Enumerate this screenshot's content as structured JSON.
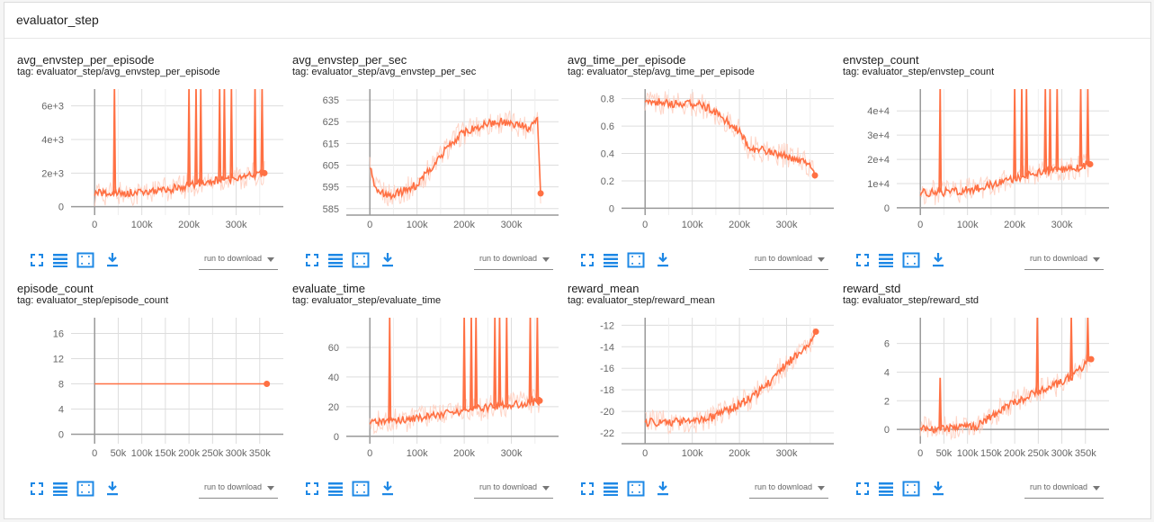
{
  "group": {
    "title": "evaluator_step"
  },
  "colors": {
    "line": "#ff7043",
    "line_light": "#ffccbc",
    "icon": "#1e88e5",
    "grid": "#dddddd",
    "axis": "#999999"
  },
  "toolbar": {
    "icons": [
      "fullscreen-icon",
      "data-table-icon",
      "fit-domain-icon",
      "download-icon"
    ],
    "download_placeholder": "run to download"
  },
  "charts": [
    {
      "title": "avg_envstep_per_episode",
      "tag": "tag: evaluator_step/avg_envstep_per_episode",
      "xlim": [
        -50000,
        400000
      ],
      "ylim": [
        -500,
        7000
      ],
      "xticks": [
        0,
        100000,
        200000,
        300000
      ],
      "xtick_labels": [
        "0",
        "100k",
        "200k",
        "300k"
      ],
      "yticks": [
        0,
        2000,
        4000,
        6000
      ],
      "ytick_labels": [
        "0",
        "2e+3",
        "4e+3",
        "6e+3"
      ],
      "smoothed": [
        [
          0,
          780
        ],
        [
          40000,
          800
        ],
        [
          80000,
          820
        ],
        [
          120000,
          900
        ],
        [
          160000,
          1050
        ],
        [
          200000,
          1250
        ],
        [
          240000,
          1450
        ],
        [
          280000,
          1650
        ],
        [
          320000,
          1800
        ],
        [
          360000,
          2000
        ]
      ],
      "final": [
        360000,
        2000
      ],
      "spikes": [
        [
          42000,
          7000
        ],
        [
          200000,
          7000
        ],
        [
          215000,
          7000
        ],
        [
          225000,
          7000
        ],
        [
          265000,
          7000
        ],
        [
          275000,
          7000
        ],
        [
          290000,
          7000
        ],
        [
          340000,
          7000
        ],
        [
          355000,
          7000
        ]
      ]
    },
    {
      "title": "avg_envstep_per_sec",
      "tag": "tag: evaluator_step/avg_envstep_per_sec",
      "xlim": [
        -50000,
        400000
      ],
      "ylim": [
        582,
        640
      ],
      "xticks": [
        0,
        100000,
        200000,
        300000
      ],
      "xtick_labels": [
        "0",
        "100k",
        "200k",
        "300k"
      ],
      "yticks": [
        585,
        595,
        605,
        615,
        625,
        635
      ],
      "ytick_labels": [
        "585",
        "595",
        "605",
        "615",
        "625",
        "635"
      ],
      "smoothed": [
        [
          0,
          605
        ],
        [
          10000,
          594
        ],
        [
          40000,
          591
        ],
        [
          70000,
          593
        ],
        [
          100000,
          596
        ],
        [
          130000,
          604
        ],
        [
          160000,
          612
        ],
        [
          190000,
          619
        ],
        [
          220000,
          622
        ],
        [
          250000,
          624
        ],
        [
          280000,
          625
        ],
        [
          310000,
          624
        ],
        [
          340000,
          622
        ],
        [
          355000,
          628
        ],
        [
          362000,
          592
        ]
      ],
      "final": [
        362000,
        592
      ],
      "spikes": []
    },
    {
      "title": "avg_time_per_episode",
      "tag": "tag: evaluator_step/avg_time_per_episode",
      "xlim": [
        -50000,
        400000
      ],
      "ylim": [
        -0.05,
        0.87
      ],
      "xticks": [
        0,
        100000,
        200000,
        300000
      ],
      "xtick_labels": [
        "0",
        "100k",
        "200k",
        "300k"
      ],
      "yticks": [
        0,
        0.2,
        0.4,
        0.6,
        0.8
      ],
      "ytick_labels": [
        "0",
        "0.2",
        "0.4",
        "0.6",
        "0.8"
      ],
      "smoothed": [
        [
          0,
          0.79
        ],
        [
          40000,
          0.77
        ],
        [
          80000,
          0.76
        ],
        [
          110000,
          0.76
        ],
        [
          140000,
          0.72
        ],
        [
          170000,
          0.64
        ],
        [
          200000,
          0.56
        ],
        [
          220000,
          0.44
        ],
        [
          260000,
          0.42
        ],
        [
          300000,
          0.38
        ],
        [
          340000,
          0.35
        ],
        [
          360000,
          0.24
        ]
      ],
      "final": [
        360000,
        0.24
      ],
      "spikes": []
    },
    {
      "title": "envstep_count",
      "tag": "tag: evaluator_step/envstep_count",
      "xlim": [
        -50000,
        400000
      ],
      "ylim": [
        -3000,
        49000
      ],
      "xticks": [
        0,
        100000,
        200000,
        300000
      ],
      "xtick_labels": [
        "0",
        "100k",
        "200k",
        "300k"
      ],
      "yticks": [
        0,
        10000,
        20000,
        30000,
        40000
      ],
      "ytick_labels": [
        "0",
        "1e+4",
        "2e+4",
        "3e+4",
        "4e+4"
      ],
      "smoothed": [
        [
          0,
          6200
        ],
        [
          40000,
          6400
        ],
        [
          80000,
          6800
        ],
        [
          120000,
          8000
        ],
        [
          160000,
          10000
        ],
        [
          200000,
          12000
        ],
        [
          240000,
          14000
        ],
        [
          280000,
          15500
        ],
        [
          320000,
          16000
        ],
        [
          360000,
          18000
        ]
      ],
      "final": [
        360000,
        18000
      ],
      "spikes": [
        [
          42000,
          49000
        ],
        [
          200000,
          49000
        ],
        [
          215000,
          49000
        ],
        [
          225000,
          49000
        ],
        [
          265000,
          49000
        ],
        [
          275000,
          49000
        ],
        [
          290000,
          49000
        ],
        [
          340000,
          49000
        ],
        [
          355000,
          49000
        ]
      ]
    },
    {
      "title": "episode_count",
      "tag": "tag: evaluator_step/episode_count",
      "xlim": [
        -50000,
        400000
      ],
      "ylim": [
        -1.5,
        18.5
      ],
      "xticks": [
        0,
        50000,
        100000,
        150000,
        200000,
        250000,
        300000,
        350000
      ],
      "xtick_labels": [
        "0",
        "50k",
        "100k",
        "150k",
        "200k",
        "250k",
        "300k",
        "350k"
      ],
      "yticks": [
        0,
        4,
        8,
        12,
        16
      ],
      "ytick_labels": [
        "0",
        "4",
        "8",
        "12",
        "16"
      ],
      "smoothed": [
        [
          0,
          8
        ],
        [
          365000,
          8
        ]
      ],
      "final": [
        365000,
        8
      ],
      "spikes": []
    },
    {
      "title": "evaluate_time",
      "tag": "tag: evaluator_step/evaluate_time",
      "xlim": [
        -50000,
        400000
      ],
      "ylim": [
        -5,
        80
      ],
      "xticks": [
        0,
        100000,
        200000,
        300000
      ],
      "xtick_labels": [
        "0",
        "100k",
        "200k",
        "300k"
      ],
      "yticks": [
        0,
        20,
        40,
        60
      ],
      "ytick_labels": [
        "0",
        "20",
        "40",
        "60"
      ],
      "smoothed": [
        [
          0,
          10
        ],
        [
          40000,
          10.5
        ],
        [
          80000,
          11
        ],
        [
          120000,
          13
        ],
        [
          160000,
          15
        ],
        [
          200000,
          17.5
        ],
        [
          240000,
          19
        ],
        [
          280000,
          21
        ],
        [
          320000,
          22
        ],
        [
          360000,
          24
        ]
      ],
      "final": [
        360000,
        24
      ],
      "spikes": [
        [
          42000,
          80
        ],
        [
          200000,
          80
        ],
        [
          215000,
          80
        ],
        [
          225000,
          80
        ],
        [
          265000,
          80
        ],
        [
          275000,
          80
        ],
        [
          290000,
          80
        ],
        [
          340000,
          80
        ],
        [
          355000,
          80
        ]
      ]
    },
    {
      "title": "reward_mean",
      "tag": "tag: evaluator_step/reward_mean",
      "xlim": [
        -50000,
        400000
      ],
      "ylim": [
        -23,
        -11.3
      ],
      "xticks": [
        0,
        100000,
        200000,
        300000
      ],
      "xtick_labels": [
        "0",
        "100k",
        "200k",
        "300k"
      ],
      "yticks": [
        -22,
        -20,
        -18,
        -16,
        -14,
        -12
      ],
      "ytick_labels": [
        "-22",
        "-20",
        "-18",
        "-16",
        "-14",
        "-12"
      ],
      "smoothed": [
        [
          0,
          -21
        ],
        [
          60000,
          -21
        ],
        [
          100000,
          -20.9
        ],
        [
          140000,
          -20.6
        ],
        [
          170000,
          -20
        ],
        [
          200000,
          -19.3
        ],
        [
          230000,
          -18.6
        ],
        [
          260000,
          -17.5
        ],
        [
          290000,
          -16
        ],
        [
          320000,
          -14.8
        ],
        [
          345000,
          -14
        ],
        [
          360000,
          -12.6
        ]
      ],
      "final": [
        362000,
        -12.6
      ],
      "spikes": []
    },
    {
      "title": "reward_std",
      "tag": "tag: evaluator_step/reward_std",
      "xlim": [
        -50000,
        400000
      ],
      "ylim": [
        -1,
        7.8
      ],
      "xticks": [
        0,
        50000,
        100000,
        150000,
        200000,
        250000,
        300000,
        350000
      ],
      "xtick_labels": [
        "0",
        "50k",
        "100k",
        "150k",
        "200k",
        "250k",
        "300k",
        "350k"
      ],
      "yticks": [
        0,
        2,
        4,
        6
      ],
      "ytick_labels": [
        "0",
        "2",
        "4",
        "6"
      ],
      "smoothed": [
        [
          0,
          0
        ],
        [
          40000,
          0.05
        ],
        [
          80000,
          0.1
        ],
        [
          120000,
          0.2
        ],
        [
          150000,
          0.9
        ],
        [
          180000,
          1.6
        ],
        [
          210000,
          2
        ],
        [
          240000,
          2.5
        ],
        [
          270000,
          2.9
        ],
        [
          300000,
          3.3
        ],
        [
          330000,
          3.9
        ],
        [
          360000,
          4.9
        ]
      ],
      "final": [
        362000,
        4.9
      ],
      "spikes": [
        [
          42000,
          3.6
        ],
        [
          248000,
          7.8
        ],
        [
          320000,
          7.8
        ],
        [
          355000,
          7.8
        ]
      ]
    }
  ]
}
